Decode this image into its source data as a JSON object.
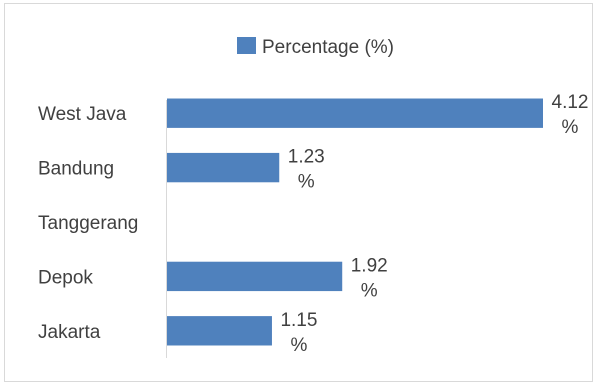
{
  "chart_data": {
    "type": "bar",
    "orientation": "horizontal",
    "categories": [
      "West Java",
      "Bandung",
      "Tanggerang",
      "Depok",
      "Jakarta"
    ],
    "series": [
      {
        "name": "Percentage (%)",
        "values": [
          4.12,
          1.23,
          null,
          1.92,
          1.15
        ],
        "data_labels": [
          "4.12 %",
          "1.23 %",
          "",
          "1.92 %",
          "1.15 %"
        ]
      }
    ],
    "xlim": [
      0,
      4.12
    ],
    "grid": false,
    "legend_position": "top",
    "colors": {
      "bar": "#4f81bd",
      "axis": "#d9d9d9",
      "text": "#404040"
    }
  }
}
